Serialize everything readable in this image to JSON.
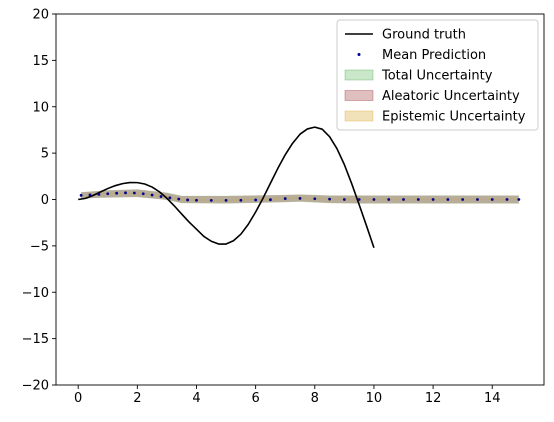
{
  "chart_data": {
    "type": "line",
    "title": "",
    "xlabel": "",
    "ylabel": "",
    "xlim": [
      -0.75,
      15.75
    ],
    "ylim": [
      -20,
      20
    ],
    "xticks": [
      0,
      2,
      4,
      6,
      8,
      10,
      12,
      14
    ],
    "yticks": [
      -20,
      -15,
      -10,
      -5,
      0,
      5,
      10,
      15,
      20
    ],
    "grid": false,
    "legend_position": "top-right",
    "colors": {
      "ground_truth": "#000000",
      "mean_prediction": "#00008b",
      "total_uncertainty": "#2ca02c",
      "aleatoric_uncertainty": "#8c1a1a",
      "epistemic_uncertainty": "#d4a017"
    },
    "ground_truth": {
      "name": "Ground truth",
      "x": [
        0,
        0.25,
        0.5,
        0.75,
        1,
        1.25,
        1.5,
        1.75,
        2,
        2.25,
        2.5,
        2.75,
        3,
        3.25,
        3.5,
        3.75,
        4,
        4.25,
        4.5,
        4.75,
        5,
        5.25,
        5.5,
        5.75,
        6,
        6.25,
        6.5,
        6.75,
        7,
        7.25,
        7.5,
        7.75,
        8,
        8.25,
        8.5,
        8.75,
        9,
        9.25,
        9.5,
        9.75,
        10
      ],
      "y": [
        0,
        0.12,
        0.43,
        0.81,
        1.18,
        1.49,
        1.71,
        1.83,
        1.82,
        1.67,
        1.34,
        0.82,
        0.13,
        -0.69,
        -1.57,
        -2.43,
        -3.2,
        -3.98,
        -4.5,
        -4.8,
        -4.8,
        -4.45,
        -3.74,
        -2.68,
        -1.35,
        0.14,
        1.75,
        3.35,
        4.82,
        6.07,
        7.04,
        7.61,
        7.8,
        7.58,
        6.77,
        5.48,
        3.76,
        1.69,
        -0.55,
        -2.85,
        -5.2
      ]
    },
    "mean_prediction": {
      "name": "Mean Prediction",
      "x": [
        0.1,
        0.4,
        0.7,
        1.0,
        1.3,
        1.6,
        1.9,
        2.2,
        2.5,
        2.8,
        3.1,
        3.4,
        3.7,
        4.0,
        4.5,
        5.0,
        5.5,
        6.0,
        6.5,
        7.0,
        7.5,
        8.0,
        8.5,
        9.0,
        9.5,
        10.0,
        10.5,
        11.0,
        11.5,
        12.0,
        12.5,
        13.0,
        13.5,
        14.0,
        14.5,
        14.9
      ],
      "y": [
        0.45,
        0.5,
        0.55,
        0.62,
        0.68,
        0.72,
        0.7,
        0.62,
        0.48,
        0.32,
        0.18,
        0.05,
        -0.05,
        -0.08,
        -0.1,
        -0.1,
        -0.08,
        -0.05,
        -0.02,
        0.1,
        0.12,
        0.08,
        0.04,
        0,
        0,
        0,
        0,
        0,
        0,
        0,
        0,
        0,
        0,
        0,
        0,
        0
      ]
    },
    "total_uncertainty": {
      "name": "Total Uncertainty",
      "x": [
        0.1,
        1.0,
        2.0,
        3.0,
        3.5,
        5.0,
        7.0,
        7.5,
        8.5,
        9.5,
        14.9
      ],
      "lower": [
        0.1,
        0.2,
        0.25,
        -0.05,
        -0.4,
        -0.45,
        -0.3,
        -0.25,
        -0.4,
        -0.45,
        -0.45
      ],
      "upper": [
        0.8,
        1.0,
        1.1,
        0.75,
        0.4,
        0.4,
        0.5,
        0.55,
        0.45,
        0.45,
        0.45
      ]
    },
    "aleatoric_uncertainty": {
      "name": "Aleatoric Uncertainty",
      "x": [
        0.1,
        1.0,
        2.0,
        3.0,
        3.5,
        5.0,
        7.0,
        7.5,
        8.5,
        9.5,
        14.9
      ],
      "lower": [
        0.12,
        0.22,
        0.27,
        -0.02,
        -0.38,
        -0.42,
        -0.28,
        -0.22,
        -0.38,
        -0.42,
        -0.42
      ],
      "upper": [
        0.78,
        0.98,
        1.08,
        0.72,
        0.38,
        0.38,
        0.48,
        0.52,
        0.42,
        0.42,
        0.42
      ]
    },
    "epistemic_uncertainty": {
      "name": "Epistemic Uncertainty",
      "x": [
        0.1,
        1.0,
        2.0,
        3.0,
        3.5,
        5.0,
        7.0,
        7.5,
        8.5,
        9.5,
        14.9
      ],
      "lower": [
        0.42,
        0.58,
        0.66,
        0.25,
        -0.08,
        -0.12,
        0.05,
        0.08,
        0.0,
        -0.02,
        -0.02
      ],
      "upper": [
        0.48,
        0.66,
        0.74,
        0.35,
        0.02,
        -0.05,
        0.15,
        0.16,
        0.06,
        0.02,
        0.02
      ]
    },
    "legend": [
      "Ground truth",
      "Mean Prediction",
      "Total Uncertainty",
      "Aleatoric Uncertainty",
      "Epistemic Uncertainty"
    ]
  }
}
